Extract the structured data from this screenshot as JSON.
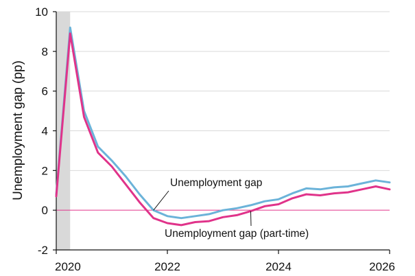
{
  "chart_data": {
    "type": "line",
    "ylabel": "Unemployment gap (pp)",
    "xlabel": "",
    "xlim": [
      2020,
      2026
    ],
    "ylim": [
      -2,
      10
    ],
    "xticks": [
      2020,
      2022,
      2024,
      2026
    ],
    "xtick_labels": [
      "2020",
      "2022",
      "2024",
      "2026"
    ],
    "yticks": [
      -2,
      0,
      2,
      4,
      6,
      8,
      10
    ],
    "ytick_labels": [
      "-2",
      "0",
      "2",
      "4",
      "6",
      "8",
      "10"
    ],
    "grid": "horizontal",
    "shaded_region": {
      "x_start": 2020.0,
      "x_end": 2020.25,
      "color": "#d9d9d9"
    },
    "reference_line": {
      "y": 0,
      "color": "#e0338a"
    },
    "series": [
      {
        "name": "Unemployment gap",
        "color": "#6bb3d9",
        "x": [
          2020.0,
          2020.25,
          2020.5,
          2020.75,
          2021.0,
          2021.25,
          2021.5,
          2021.75,
          2022.0,
          2022.25,
          2022.5,
          2022.75,
          2023.0,
          2023.25,
          2023.5,
          2023.75,
          2024.0,
          2024.25,
          2024.5,
          2024.75,
          2025.0,
          2025.25,
          2025.5,
          2025.75,
          2026.0
        ],
        "y": [
          0.8,
          9.2,
          5.0,
          3.2,
          2.5,
          1.7,
          0.8,
          0.0,
          -0.3,
          -0.4,
          -0.3,
          -0.2,
          0.0,
          0.1,
          0.25,
          0.45,
          0.55,
          0.85,
          1.1,
          1.05,
          1.15,
          1.2,
          1.35,
          1.5,
          1.4
        ]
      },
      {
        "name": "Unemployment gap (part-time)",
        "color": "#e0338a",
        "x": [
          2020.0,
          2020.25,
          2020.5,
          2020.75,
          2021.0,
          2021.25,
          2021.5,
          2021.75,
          2022.0,
          2022.25,
          2022.5,
          2022.75,
          2023.0,
          2023.25,
          2023.5,
          2023.75,
          2024.0,
          2024.25,
          2024.5,
          2024.75,
          2025.0,
          2025.25,
          2025.5,
          2025.75,
          2026.0
        ],
        "y": [
          0.7,
          8.9,
          4.7,
          2.9,
          2.2,
          1.3,
          0.4,
          -0.4,
          -0.65,
          -0.75,
          -0.6,
          -0.55,
          -0.35,
          -0.25,
          -0.05,
          0.2,
          0.3,
          0.6,
          0.8,
          0.75,
          0.85,
          0.9,
          1.05,
          1.2,
          1.05
        ]
      }
    ],
    "annotations": [
      {
        "text": "Unemployment gap",
        "series": 0,
        "x": 2021.75
      },
      {
        "text": "Unemployment gap (part-time)",
        "series": 1,
        "x": 2023.5
      }
    ]
  }
}
